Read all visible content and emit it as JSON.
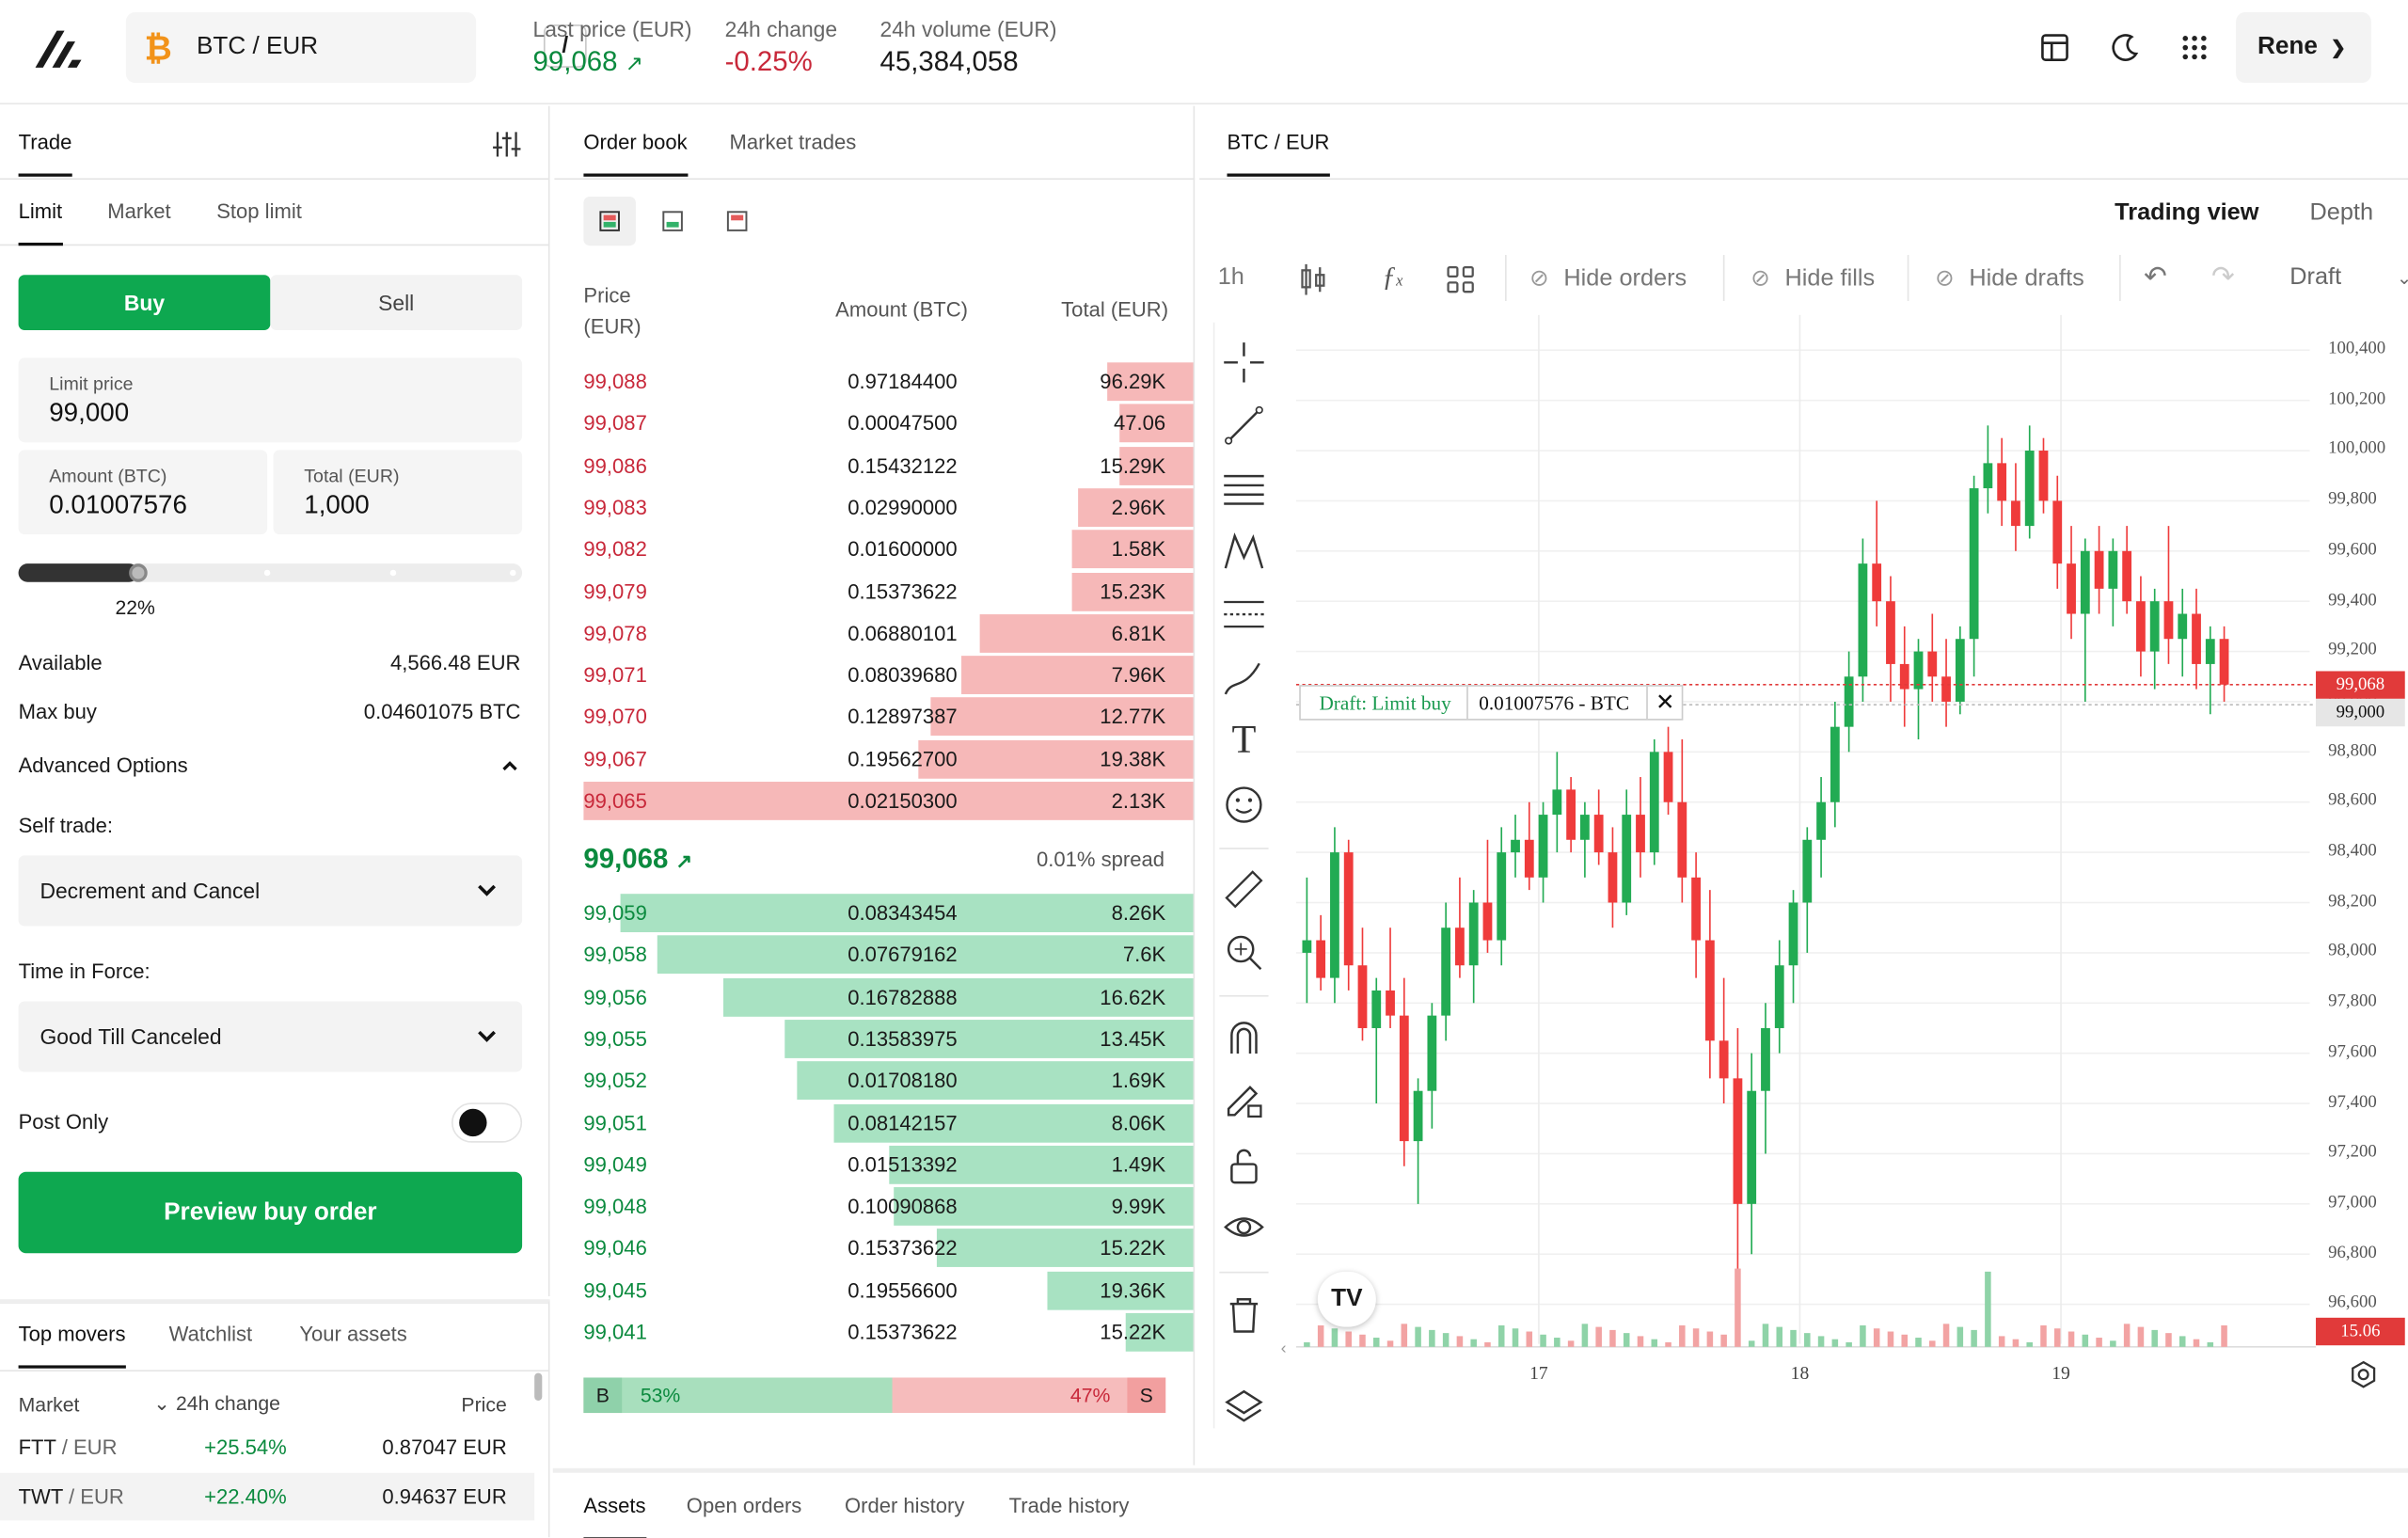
{
  "header": {
    "pair": "BTC / EUR",
    "pair_shortcut": "/",
    "last_price_label": "Last price (EUR)",
    "last_price": "99,068",
    "change_label": "24h change",
    "change": "-0.25%",
    "volume_label": "24h volume (EUR)",
    "volume": "45,384,058",
    "user": "Rene"
  },
  "trade": {
    "title": "Trade",
    "tabs": [
      "Limit",
      "Market",
      "Stop limit"
    ],
    "buy": "Buy",
    "sell": "Sell",
    "limit_label": "Limit price",
    "limit_value": "99,000",
    "amount_label": "Amount (BTC)",
    "amount_value": "0.01007576",
    "total_label": "Total (EUR)",
    "total_value": "1,000",
    "slider_pct": "22%",
    "slider_fraction": 0.22,
    "available_label": "Available",
    "available_value": "4,566.48 EUR",
    "maxbuy_label": "Max buy",
    "maxbuy_value": "0.04601075 BTC",
    "advanced": "Advanced Options",
    "self_trade_label": "Self trade:",
    "self_trade_value": "Decrement and Cancel",
    "tif_label": "Time in Force:",
    "tif_value": "Good Till Canceled",
    "post_only": "Post Only",
    "preview": "Preview buy order"
  },
  "movers": {
    "tabs": [
      "Top movers",
      "Watchlist",
      "Your assets"
    ],
    "col_market": "Market",
    "col_change": "24h change",
    "col_price": "Price",
    "rows": [
      {
        "base": "FTT",
        "quote": " / EUR",
        "change": "+25.54%",
        "price": "0.87047 EUR"
      },
      {
        "base": "TWT",
        "quote": " / EUR",
        "change": "+22.40%",
        "price": "0.94637 EUR"
      }
    ]
  },
  "orderbook": {
    "tabs": [
      "Order book",
      "Market trades"
    ],
    "col_price": "Price",
    "col_price_unit": "(EUR)",
    "col_amount": "Amount (BTC)",
    "col_total": "Total (EUR)",
    "asks": [
      [
        "99,088",
        "0.97184400",
        "96.29K"
      ],
      [
        "99,087",
        "0.00047500",
        "47.06"
      ],
      [
        "99,086",
        "0.15432122",
        "15.29K"
      ],
      [
        "99,083",
        "0.02990000",
        "2.96K"
      ],
      [
        "99,082",
        "0.01600000",
        "1.58K"
      ],
      [
        "99,079",
        "0.15373622",
        "15.23K"
      ],
      [
        "99,078",
        "0.06880101",
        "6.81K"
      ],
      [
        "99,071",
        "0.08039680",
        "7.96K"
      ],
      [
        "99,070",
        "0.12897387",
        "12.77K"
      ],
      [
        "99,067",
        "0.19562700",
        "19.38K"
      ],
      [
        "99,065",
        "0.02150300",
        "2.13K"
      ]
    ],
    "ask_depth": [
      0.86,
      0.88,
      0.88,
      0.81,
      0.8,
      0.8,
      0.65,
      0.62,
      0.57,
      0.55,
      0
    ],
    "mid_price": "99,068",
    "spread": "0.01% spread",
    "bids": [
      [
        "99,059",
        "0.08343454",
        "8.26K"
      ],
      [
        "99,058",
        "0.07679162",
        "7.6K"
      ],
      [
        "99,056",
        "0.16782888",
        "16.62K"
      ],
      [
        "99,055",
        "0.13583975",
        "13.45K"
      ],
      [
        "99,052",
        "0.01708180",
        "1.69K"
      ],
      [
        "99,051",
        "0.08142157",
        "8.06K"
      ],
      [
        "99,049",
        "0.01513392",
        "1.49K"
      ],
      [
        "99,048",
        "0.10090868",
        "9.99K"
      ],
      [
        "99,046",
        "0.15373622",
        "15.22K"
      ],
      [
        "99,045",
        "0.19556600",
        "19.36K"
      ],
      [
        "99,041",
        "0.15373622",
        "15.22K"
      ]
    ],
    "bid_depth": [
      0.06,
      0.12,
      0.23,
      0.33,
      0.35,
      0.41,
      0.5,
      0.51,
      0.58,
      0.76,
      0.89
    ],
    "buy_letter": "B",
    "buy_pct": "53%",
    "sell_pct": "47%",
    "sell_letter": "S",
    "buy_fraction": 0.53
  },
  "chart": {
    "tab": "BTC / EUR",
    "view_trading": "Trading view",
    "view_depth": "Depth",
    "interval": "1h",
    "hide_orders": "Hide orders",
    "hide_fills": "Hide fills",
    "hide_drafts": "Hide drafts",
    "draft": "Draft",
    "draft_label": "Draft: Limit buy",
    "draft_amount": "0.01007576 - BTC",
    "last_tag": "99,068",
    "draft_tag": "99,000",
    "volume_tag": "15.06"
  },
  "chart_data": {
    "type": "candlestick",
    "x_ticks": [
      "17",
      "18",
      "19"
    ],
    "y_ticks": [
      "100,400",
      "100,200",
      "100,000",
      "99,800",
      "99,600",
      "99,400",
      "99,200",
      "99,000",
      "98,800",
      "98,600",
      "98,400",
      "98,200",
      "98,000",
      "97,800",
      "97,600",
      "97,400",
      "97,200",
      "97,000",
      "96,800",
      "96,600"
    ],
    "ylim": [
      96500,
      100450
    ],
    "last_price": 99068,
    "draft_price": 99000,
    "volume_last": 15.06
  },
  "bottom": {
    "tabs": [
      "Assets",
      "Open orders",
      "Order history",
      "Trade history"
    ]
  }
}
